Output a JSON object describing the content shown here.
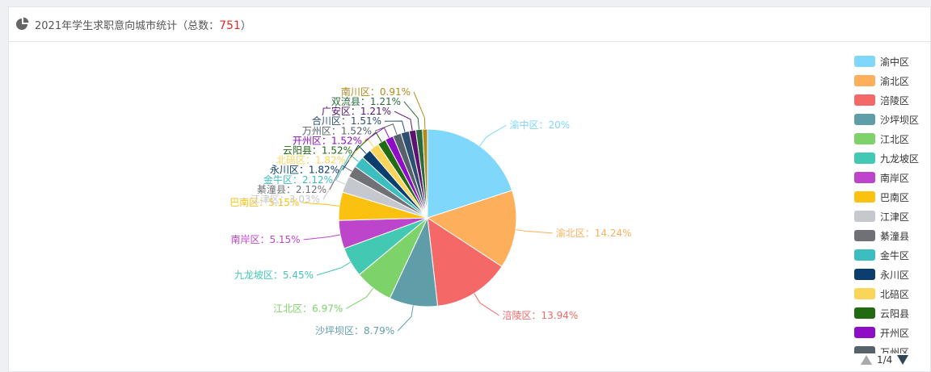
{
  "header": {
    "title_prefix": "2021年学生求职意向城市统计（总数：",
    "total": "751",
    "title_suffix": "）",
    "icon": "pie-chart-icon"
  },
  "pager": {
    "text": "1/4",
    "prev_icon": "triangle-up-icon",
    "next_icon": "triangle-down-icon"
  },
  "legend_visible": [
    {
      "name": "渝中区",
      "color": "#7fd7fb"
    },
    {
      "name": "渝北区",
      "color": "#fdaf5c"
    },
    {
      "name": "涪陵区",
      "color": "#f46867"
    },
    {
      "name": "沙坪坝区",
      "color": "#5f9ea8"
    },
    {
      "name": "江北区",
      "color": "#7ed26a"
    },
    {
      "name": "九龙坡区",
      "color": "#43c9b3"
    },
    {
      "name": "南岸区",
      "color": "#bd45cc"
    },
    {
      "name": "巴南区",
      "color": "#fbc110"
    },
    {
      "name": "江津区",
      "color": "#c5c9cf"
    },
    {
      "name": "綦潼县",
      "color": "#6f7176"
    },
    {
      "name": "金牛区",
      "color": "#3cbdc0"
    },
    {
      "name": "永川区",
      "color": "#0b3d6e"
    },
    {
      "name": "北碚区",
      "color": "#fbd55a"
    },
    {
      "name": "云阳县",
      "color": "#216b13"
    },
    {
      "name": "开州区",
      "color": "#8e0ec7"
    },
    {
      "name": "万州区",
      "color": "#56616a"
    }
  ],
  "chart_data": {
    "type": "pie",
    "title": "2021年学生求职意向城市统计（总数：751）",
    "total": 751,
    "slices": [
      {
        "name": "渝中区",
        "percent": 20,
        "label": "20%",
        "color": "#7fd7fb"
      },
      {
        "name": "渝北区",
        "percent": 14.24,
        "label": "14.24%",
        "color": "#fdaf5c"
      },
      {
        "name": "涪陵区",
        "percent": 13.94,
        "label": "13.94%",
        "color": "#f46867"
      },
      {
        "name": "沙坪坝区",
        "percent": 8.79,
        "label": "8.79%",
        "color": "#5f9ea8"
      },
      {
        "name": "江北区",
        "percent": 6.97,
        "label": "6.97%",
        "color": "#7ed26a"
      },
      {
        "name": "九龙坡区",
        "percent": 5.45,
        "label": "5.45%",
        "color": "#43c9b3"
      },
      {
        "name": "南岸区",
        "percent": 5.15,
        "label": "5.15%",
        "color": "#bd45cc"
      },
      {
        "name": "巴南区",
        "percent": 5.15,
        "label": "5.15%",
        "color": "#fbc110"
      },
      {
        "name": "江津区",
        "percent": 3.03,
        "label": "3.03%",
        "color": "#c5c9cf"
      },
      {
        "name": "綦潼县",
        "percent": 2.12,
        "label": "2.12%",
        "color": "#6f7176"
      },
      {
        "name": "金牛区",
        "percent": 2.12,
        "label": "2.12%",
        "color": "#3cbdc0"
      },
      {
        "name": "永川区",
        "percent": 1.82,
        "label": "1.82%",
        "color": "#0b3d6e"
      },
      {
        "name": "北碚区",
        "percent": 1.82,
        "label": "1.82%",
        "color": "#fbd55a"
      },
      {
        "name": "云阳县",
        "percent": 1.52,
        "label": "1.52%",
        "color": "#216b13"
      },
      {
        "name": "开州区",
        "percent": 1.52,
        "label": "1.52%",
        "color": "#8e0ec7"
      },
      {
        "name": "万州区",
        "percent": 1.52,
        "label": "1.52%",
        "color": "#56616a"
      },
      {
        "name": "合川区",
        "percent": 1.51,
        "label": "1.51%",
        "color": "#2e4f72"
      },
      {
        "name": "广安区",
        "percent": 1.21,
        "label": "1.21%",
        "color": "#5b1270"
      },
      {
        "name": "双流县",
        "percent": 1.21,
        "label": "1.21%",
        "color": "#2a6b3c"
      },
      {
        "name": "南川区",
        "percent": 0.91,
        "label": "0.91%",
        "color": "#b08c1c"
      }
    ],
    "legend_position": "right"
  }
}
